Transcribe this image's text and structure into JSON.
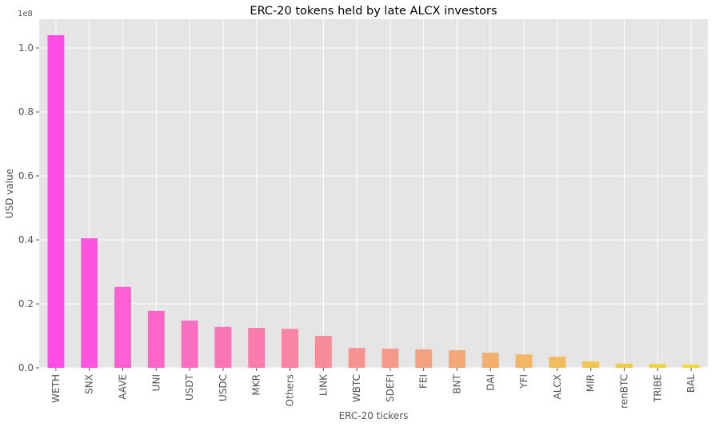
{
  "chart_data": {
    "type": "bar",
    "title": "ERC-20 tokens held by late ALCX investors",
    "xlabel": "ERC-20 tickers",
    "ylabel": "USD value",
    "y_offset_label": "1e8",
    "ylim": [
      0,
      1.09
    ],
    "yticks": [
      0.0,
      0.2,
      0.4,
      0.6,
      0.8,
      1.0
    ],
    "ytick_labels": [
      "0.0",
      "0.2",
      "0.4",
      "0.6",
      "0.8",
      "1.0"
    ],
    "grid": true,
    "legend": "none",
    "categories": [
      "WETH",
      "SNX",
      "AAVE",
      "UNI",
      "USDT",
      "USDC",
      "MKR",
      "Others",
      "LINK",
      "WBTC",
      "SDEFI",
      "FEI",
      "BNT",
      "DAI",
      "YFI",
      "ALCX",
      "MIR",
      "renBTC",
      "TRIBE",
      "BAL"
    ],
    "values": [
      1.04,
      0.405,
      0.253,
      0.178,
      0.148,
      0.128,
      0.125,
      0.122,
      0.1,
      0.062,
      0.06,
      0.058,
      0.055,
      0.047,
      0.042,
      0.035,
      0.02,
      0.013,
      0.012,
      0.01
    ],
    "colors": [
      "#ff4de8",
      "#ff55de",
      "#fc5fd2",
      "#fb66c8",
      "#fa6ec0",
      "#f975b6",
      "#f87dac",
      "#f884a3",
      "#f78b9a",
      "#f69391",
      "#f59a88",
      "#f4a17f",
      "#f4a876",
      "#f3af6d",
      "#f2b664",
      "#f1bd5c",
      "#f1c453",
      "#f0cb4b",
      "#efd243",
      "#efd93b"
    ]
  }
}
